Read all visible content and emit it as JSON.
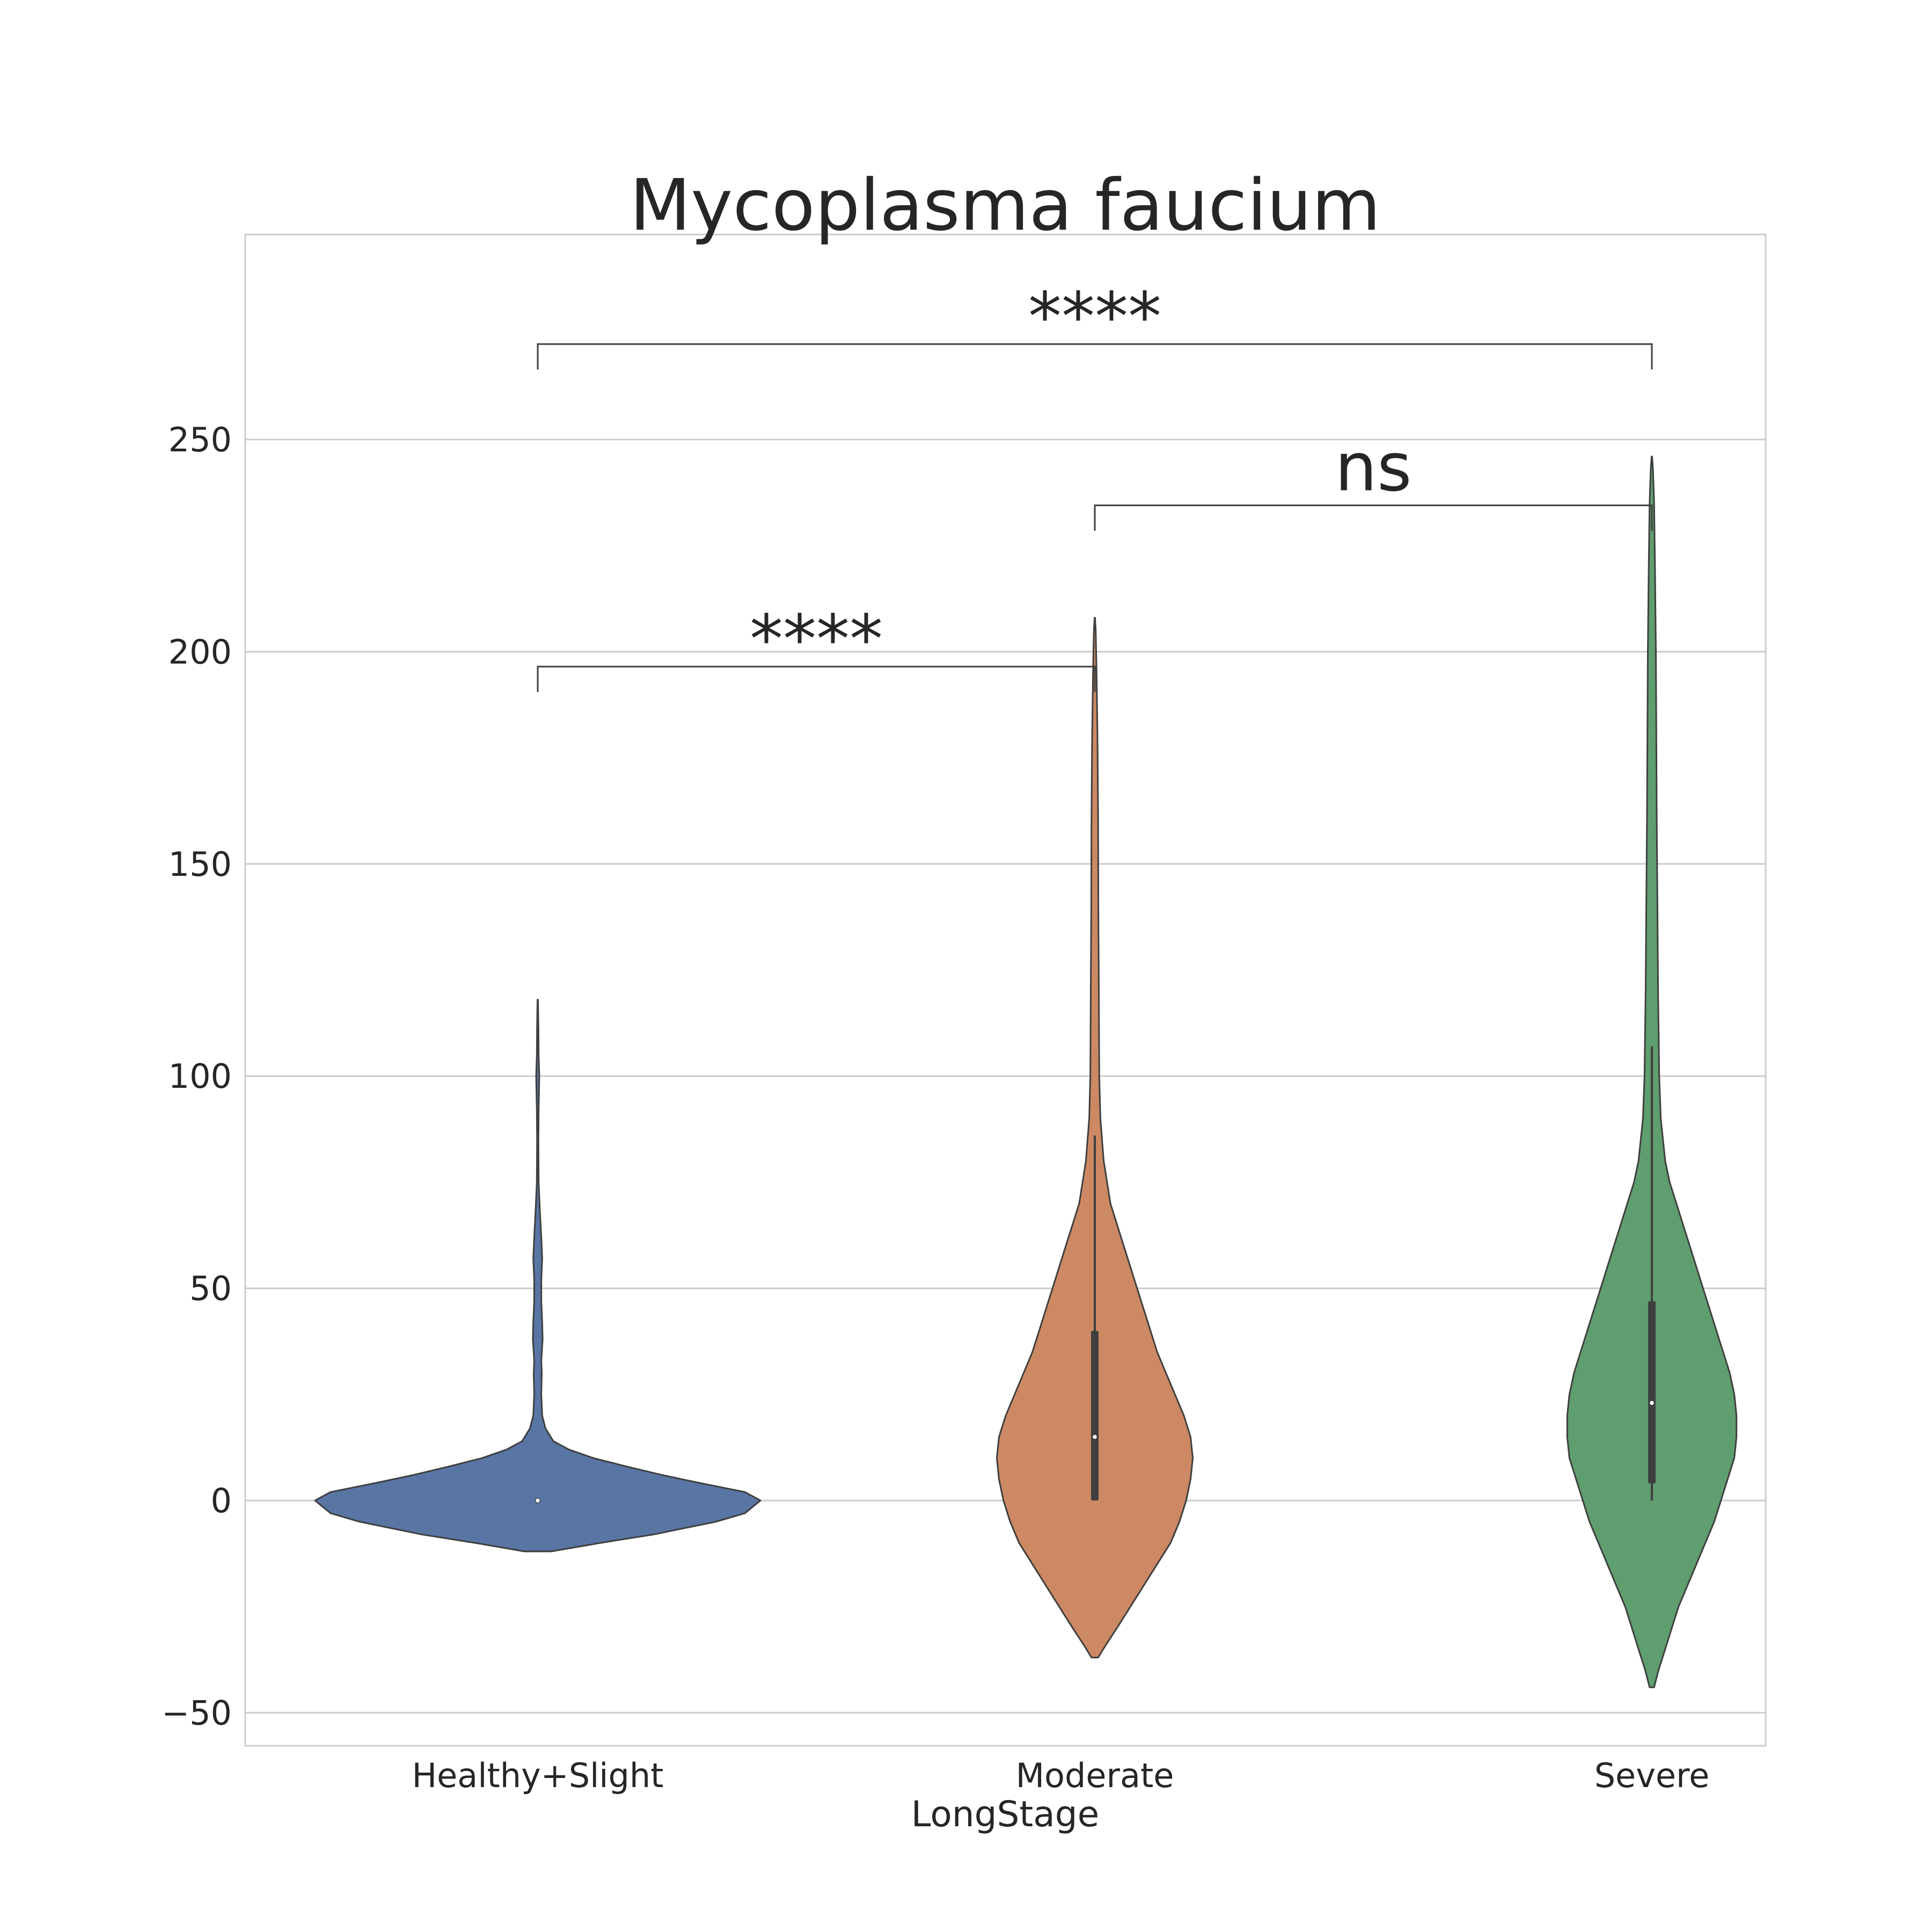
{
  "chart_data": {
    "type": "violin",
    "title": "Mycoplasma faucium",
    "xlabel": "LongStage",
    "ylabel": "",
    "ylim": [
      -58,
      298
    ],
    "yticks": [
      -50,
      0,
      50,
      100,
      150,
      200,
      250
    ],
    "ytick_labels": [
      "−50",
      "0",
      "50",
      "100",
      "150",
      "200",
      "250"
    ],
    "grid": "horizontal",
    "categories": [
      "Healthy+Slight",
      "Moderate",
      "Severe"
    ],
    "series": [
      {
        "category": "Healthy+Slight",
        "color": "#5875a4",
        "median": 0,
        "q1": 0,
        "q3": 0,
        "whisker_low": 0,
        "whisker_high": 0,
        "profile": [
          [
            -12,
            0.06
          ],
          [
            -10,
            0.28
          ],
          [
            -8,
            0.52
          ],
          [
            -5,
            0.8
          ],
          [
            -3,
            0.93
          ],
          [
            0,
            1.0
          ],
          [
            2,
            0.93
          ],
          [
            4,
            0.74
          ],
          [
            6,
            0.56
          ],
          [
            8,
            0.4
          ],
          [
            10,
            0.25
          ],
          [
            12,
            0.14
          ],
          [
            14,
            0.07
          ],
          [
            17,
            0.035
          ],
          [
            20,
            0.02
          ],
          [
            25,
            0.016
          ],
          [
            30,
            0.018
          ],
          [
            33,
            0.016
          ],
          [
            38,
            0.022
          ],
          [
            42,
            0.02
          ],
          [
            47,
            0.016
          ],
          [
            52,
            0.016
          ],
          [
            57,
            0.02
          ],
          [
            62,
            0.016
          ],
          [
            68,
            0.01
          ],
          [
            75,
            0.004
          ],
          [
            85,
            0.003
          ],
          [
            92,
            0.004
          ],
          [
            100,
            0.007
          ],
          [
            105,
            0.004
          ],
          [
            112,
            0.003
          ],
          [
            118,
            0.001
          ]
        ]
      },
      {
        "category": "Moderate",
        "color": "#cc8963",
        "median": 15,
        "q1": 0,
        "q3": 40,
        "whisker_low": 0,
        "whisker_high": 86,
        "profile": [
          [
            -37,
            0.015
          ],
          [
            -34,
            0.05
          ],
          [
            -30,
            0.1
          ],
          [
            -25,
            0.16
          ],
          [
            -20,
            0.22
          ],
          [
            -15,
            0.28
          ],
          [
            -10,
            0.34
          ],
          [
            -5,
            0.38
          ],
          [
            0,
            0.41
          ],
          [
            5,
            0.43
          ],
          [
            10,
            0.44
          ],
          [
            15,
            0.43
          ],
          [
            20,
            0.4
          ],
          [
            25,
            0.36
          ],
          [
            30,
            0.32
          ],
          [
            35,
            0.28
          ],
          [
            40,
            0.25
          ],
          [
            45,
            0.22
          ],
          [
            50,
            0.19
          ],
          [
            55,
            0.16
          ],
          [
            60,
            0.13
          ],
          [
            65,
            0.1
          ],
          [
            70,
            0.07
          ],
          [
            80,
            0.04
          ],
          [
            90,
            0.025
          ],
          [
            100,
            0.02
          ],
          [
            120,
            0.018
          ],
          [
            140,
            0.016
          ],
          [
            160,
            0.015
          ],
          [
            180,
            0.012
          ],
          [
            195,
            0.008
          ],
          [
            205,
            0.004
          ],
          [
            208,
            0.001
          ]
        ]
      },
      {
        "category": "Severe",
        "color": "#5f9e6e",
        "median": 23,
        "q1": 4,
        "q3": 47,
        "whisker_low": 0,
        "whisker_high": 107,
        "profile": [
          [
            -44,
            0.01
          ],
          [
            -40,
            0.03
          ],
          [
            -35,
            0.06
          ],
          [
            -30,
            0.09
          ],
          [
            -25,
            0.12
          ],
          [
            -20,
            0.16
          ],
          [
            -15,
            0.2
          ],
          [
            -10,
            0.24
          ],
          [
            -5,
            0.28
          ],
          [
            0,
            0.31
          ],
          [
            5,
            0.34
          ],
          [
            10,
            0.37
          ],
          [
            15,
            0.38
          ],
          [
            20,
            0.38
          ],
          [
            25,
            0.37
          ],
          [
            30,
            0.35
          ],
          [
            35,
            0.32
          ],
          [
            40,
            0.29
          ],
          [
            45,
            0.26
          ],
          [
            50,
            0.23
          ],
          [
            55,
            0.2
          ],
          [
            60,
            0.17
          ],
          [
            65,
            0.14
          ],
          [
            70,
            0.11
          ],
          [
            75,
            0.08
          ],
          [
            80,
            0.06
          ],
          [
            90,
            0.04
          ],
          [
            100,
            0.033
          ],
          [
            120,
            0.028
          ],
          [
            140,
            0.025
          ],
          [
            160,
            0.022
          ],
          [
            180,
            0.02
          ],
          [
            200,
            0.018
          ],
          [
            220,
            0.014
          ],
          [
            235,
            0.01
          ],
          [
            243,
            0.005
          ],
          [
            246,
            0.001
          ]
        ]
      }
    ],
    "annotations": [
      {
        "from": "Healthy+Slight",
        "to": "Moderate",
        "label": "****",
        "y": 196.5,
        "tick_low": 190.5
      },
      {
        "from": "Moderate",
        "to": "Severe",
        "label": "ns",
        "y": 234.5,
        "tick_low": 228.5
      },
      {
        "from": "Healthy+Slight",
        "to": "Severe",
        "label": "****",
        "y": 272.5,
        "tick_low": 266.5
      }
    ]
  }
}
